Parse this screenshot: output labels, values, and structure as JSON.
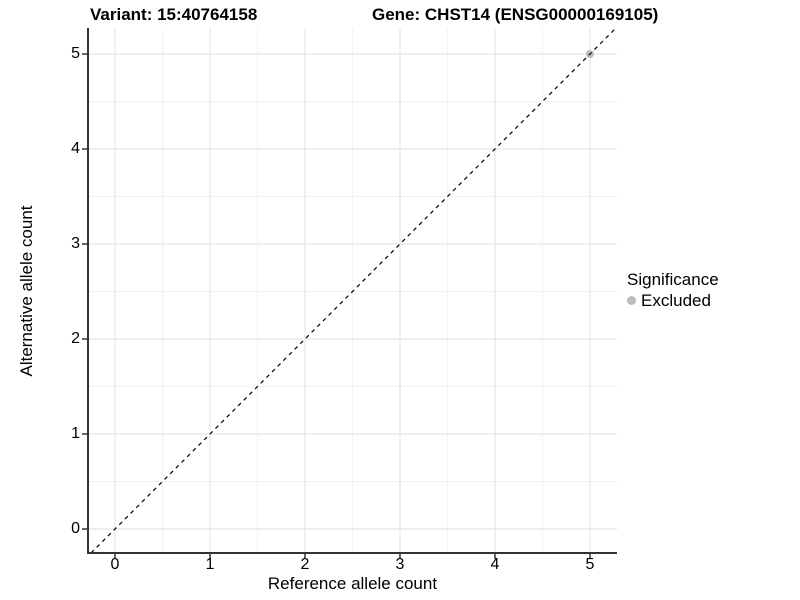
{
  "titles": {
    "variant": "Variant: 15:40764158",
    "gene": "Gene: CHST14 (ENSG00000169105)"
  },
  "axes": {
    "x": {
      "label": "Reference allele count",
      "ticks": [
        "0",
        "1",
        "2",
        "3",
        "4",
        "5"
      ]
    },
    "y": {
      "label": "Alternative allele count",
      "ticks": [
        "0",
        "1",
        "2",
        "3",
        "4",
        "5"
      ]
    }
  },
  "legend": {
    "title": "Significance",
    "items": [
      {
        "label": "Excluded",
        "color": "#bcbcbc",
        "marker": "circle-icon"
      }
    ]
  },
  "chart_data": {
    "type": "scatter",
    "title": "Variant: 15:40764158 | Gene: CHST14 (ENSG00000169105)",
    "xlabel": "Reference allele count",
    "ylabel": "Alternative allele count",
    "xlim": [
      -0.27,
      5.27
    ],
    "ylim": [
      -0.27,
      5.27
    ],
    "x_ticks": [
      0,
      1,
      2,
      3,
      4,
      5
    ],
    "y_ticks": [
      0,
      1,
      2,
      3,
      4,
      5
    ],
    "grid": {
      "major": [
        0,
        1,
        2,
        3,
        4,
        5
      ],
      "minor": [
        0.5,
        1.5,
        2.5,
        3.5,
        4.5
      ],
      "major_color": "#e5e5e5",
      "minor_color": "#f2f2f2"
    },
    "series": [
      {
        "name": "Excluded",
        "color": "#bcbcbc",
        "points": [
          {
            "x": 5,
            "y": 5
          }
        ]
      }
    ],
    "reference_line": {
      "slope": 1,
      "intercept": 0,
      "style": "dashed",
      "color": "#000000"
    },
    "legend_position": "right",
    "axis_color": "#333333"
  }
}
